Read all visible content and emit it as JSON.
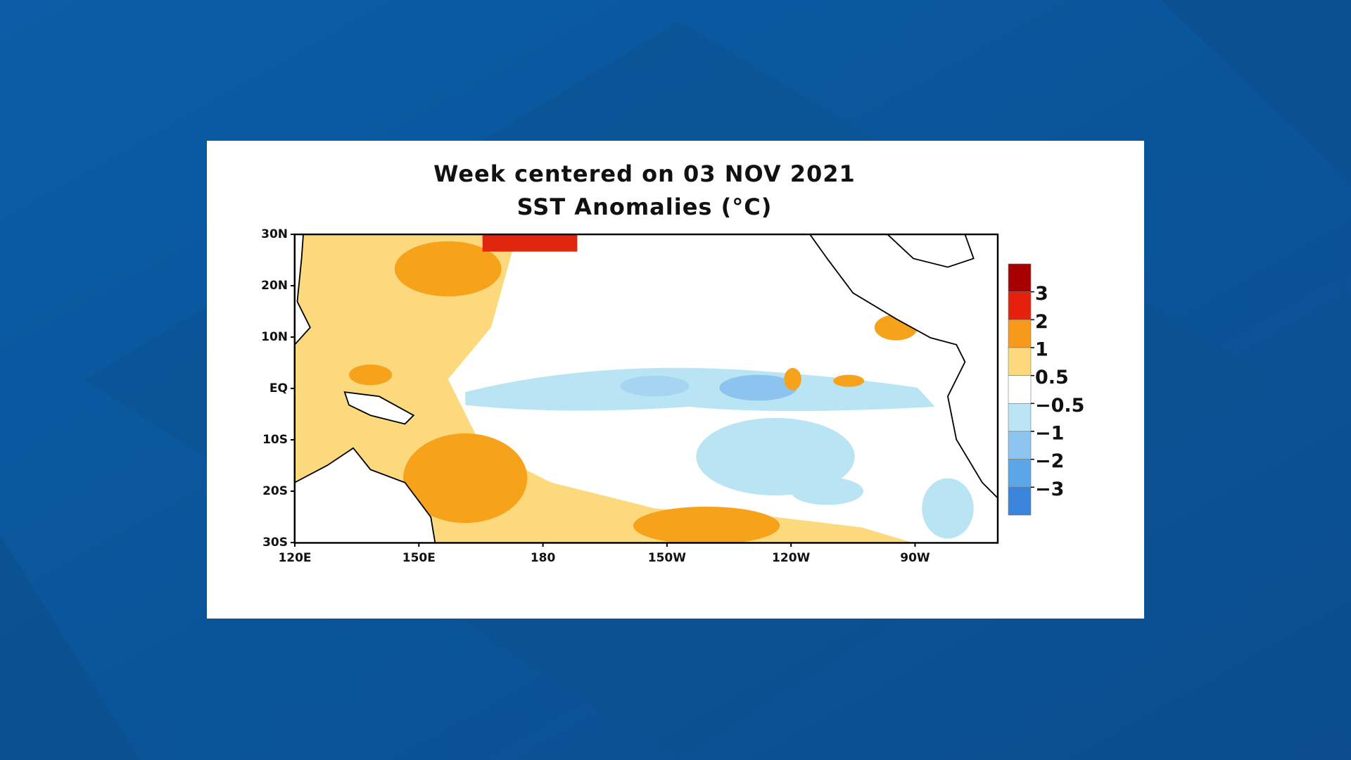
{
  "title": "Week centered on 03 NOV 2021",
  "subtitle": "SST Anomalies (°C)",
  "map": {
    "lonlim": [
      120,
      290
    ],
    "latlim": [
      -30,
      30
    ],
    "lon_ticks": [
      {
        "value": 120,
        "label": "120E"
      },
      {
        "value": 150,
        "label": "150E"
      },
      {
        "value": 180,
        "label": "180"
      },
      {
        "value": 210,
        "label": "150W"
      },
      {
        "value": 240,
        "label": "120W"
      },
      {
        "value": 270,
        "label": "90W"
      }
    ],
    "lat_ticks": [
      {
        "value": 30,
        "label": "30N"
      },
      {
        "value": 20,
        "label": "20N"
      },
      {
        "value": 10,
        "label": "10N"
      },
      {
        "value": 0,
        "label": "EQ"
      },
      {
        "value": -10,
        "label": "10S"
      },
      {
        "value": -20,
        "label": "20S"
      },
      {
        "value": -30,
        "label": "30S"
      }
    ]
  },
  "colorbar": {
    "colors": [
      "#a80000",
      "#e5200c",
      "#f7991a",
      "#fbd97c",
      "#ffffff",
      "#b9e5f5",
      "#8cc6f0",
      "#5aa6e6",
      "#3a84dc"
    ],
    "ticks": [
      3,
      2,
      1,
      0.5,
      {
        "value": -0.5,
        "label": "−0.5"
      },
      {
        "value": -1,
        "label": "−1"
      },
      {
        "value": -2,
        "label": "−2"
      },
      {
        "value": -3,
        "label": "−3"
      }
    ]
  }
}
